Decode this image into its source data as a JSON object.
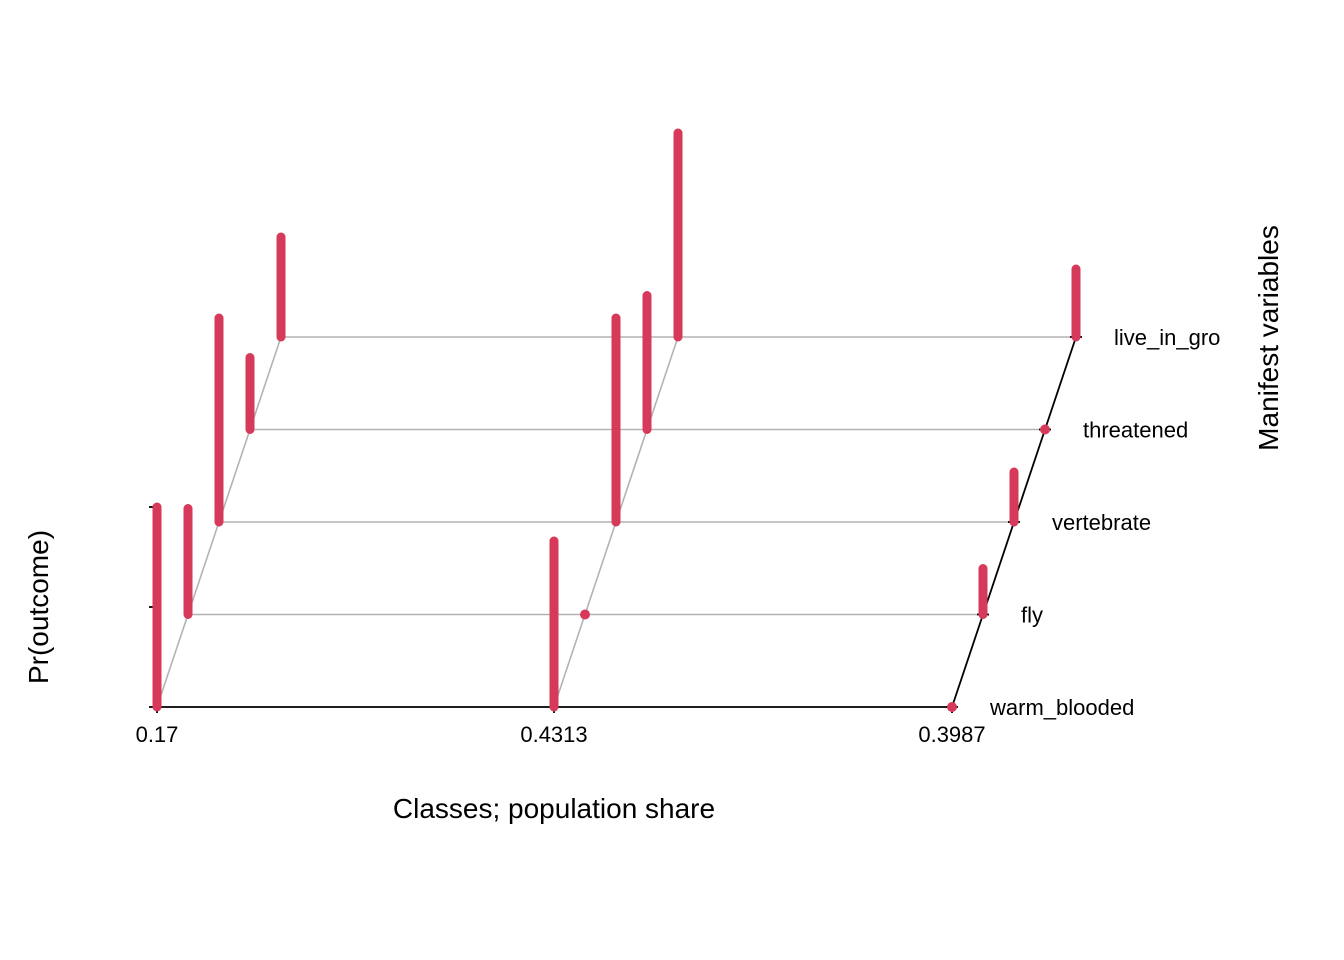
{
  "chart_data": {
    "type": "3d-bar",
    "xlabel": "Classes; population share",
    "ylabel": "Pr(outcome)",
    "zlabel": "Manifest variables",
    "classes": [
      "0.17",
      "0.4313",
      "0.3987"
    ],
    "variables": [
      "warm_blooded",
      "fly",
      "vertebrate",
      "threatened",
      "live_in_group"
    ],
    "visible_variable_labels": [
      "warm_blooded",
      "fly",
      "vertebrate",
      "threatened",
      "live_in_gro"
    ],
    "ylim": [
      0,
      1
    ],
    "color": "#D6395A",
    "series": [
      {
        "name": "0.17",
        "values": [
          1.0,
          0.53,
          1.02,
          0.36,
          0.5
        ]
      },
      {
        "name": "0.4313",
        "values": [
          0.83,
          0.0,
          1.02,
          0.67,
          1.02
        ]
      },
      {
        "name": "0.3987",
        "values": [
          0.0,
          0.23,
          0.25,
          0.0,
          0.34
        ]
      }
    ],
    "grid": true,
    "legend": "none"
  }
}
